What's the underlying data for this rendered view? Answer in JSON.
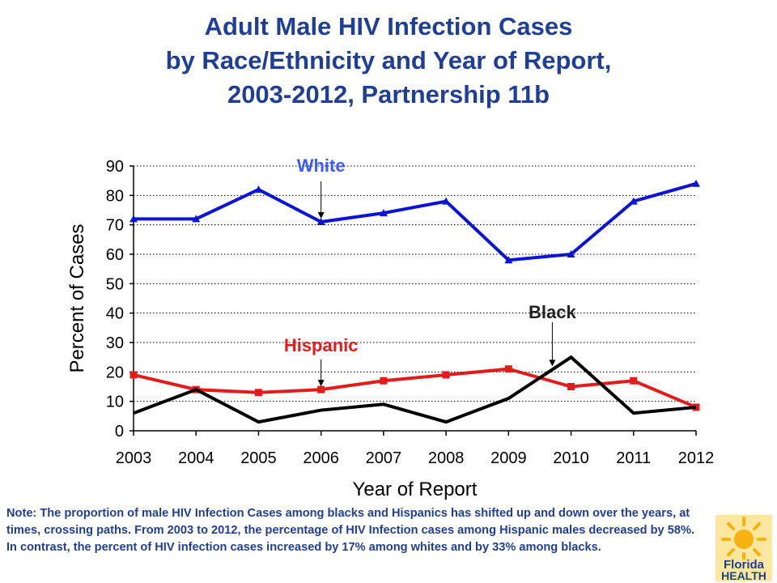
{
  "title": {
    "line1": "Adult Male HIV Infection Cases",
    "line2": "by Race/Ethnicity and Year of Report,",
    "line3": "2003-2012, Partnership 11b"
  },
  "chart_data": {
    "type": "line",
    "xlabel": "Year of Report",
    "ylabel": "Percent of Cases",
    "ylim": [
      0,
      90
    ],
    "yticks": [
      0,
      10,
      20,
      30,
      40,
      50,
      60,
      70,
      80,
      90
    ],
    "categories": [
      "2003",
      "2004",
      "2005",
      "2006",
      "2007",
      "2008",
      "2009",
      "2010",
      "2011",
      "2012"
    ],
    "grid": "horizontal dotted",
    "series": [
      {
        "name": "White",
        "color": "#0a14d8",
        "marker": "triangle",
        "values": [
          72,
          72,
          82,
          71,
          74,
          78,
          58,
          60,
          78,
          84
        ]
      },
      {
        "name": "Hispanic",
        "color": "#e41b1b",
        "marker": "square",
        "values": [
          19,
          14,
          13,
          14,
          17,
          19,
          21,
          15,
          17,
          8
        ]
      },
      {
        "name": "Black",
        "color": "#000000",
        "marker": "none",
        "values": [
          6,
          14,
          3,
          7,
          9,
          3,
          11,
          25,
          6,
          8
        ]
      }
    ],
    "annotations": [
      {
        "text": "White",
        "color": "#3b5bff",
        "series": "White",
        "year_index": 3
      },
      {
        "text": "Hispanic",
        "color": "#e41b1b",
        "series": "Hispanic",
        "year_index": 3
      },
      {
        "text": "Black",
        "color": "#222222",
        "series": "Black",
        "year_index": 6.7
      }
    ]
  },
  "note": "Note:  The proportion of male HIV Infection Cases among blacks and Hispanics has shifted up and down over the years, at times, crossing paths.  From 2003 to 2012, the percentage of HIV Infection cases among Hispanic males decreased by 58%.   In contrast, the percent of HIV infection cases increased by 17% among whites and by 33% among blacks.",
  "logo": {
    "line1": "Florida",
    "line2": "HEALTH",
    "sun_color": "#f7b20f",
    "word_color": "#1f3f96"
  }
}
